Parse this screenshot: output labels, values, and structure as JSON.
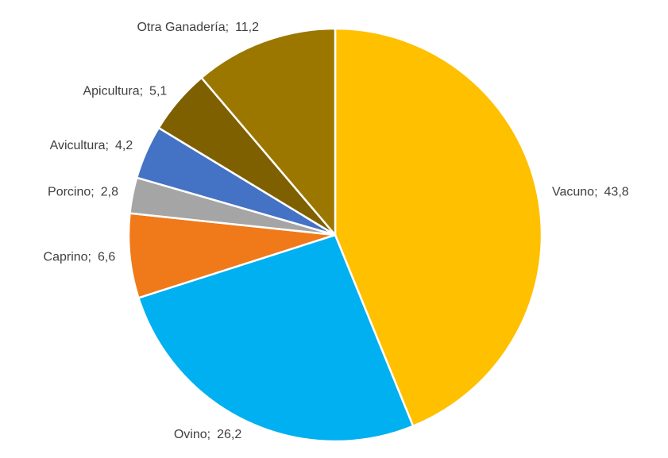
{
  "chart_data": {
    "type": "pie",
    "categories": [
      "Vacuno",
      "Ovino",
      "Caprino",
      "Porcino",
      "Avicultura",
      "Apicultura",
      "Otra Ganadería"
    ],
    "values": [
      43.8,
      26.2,
      6.6,
      2.8,
      4.2,
      5.1,
      11.2
    ],
    "value_labels": [
      "43,8",
      "26,2",
      "6,6",
      "2,8",
      "4,2",
      "5,1",
      "11,2"
    ],
    "label_separator": ";",
    "colors": [
      "#FFC000",
      "#00B0F0",
      "#F07A1A",
      "#A5A5A5",
      "#4472C4",
      "#7F6000",
      "#9C7700"
    ]
  }
}
